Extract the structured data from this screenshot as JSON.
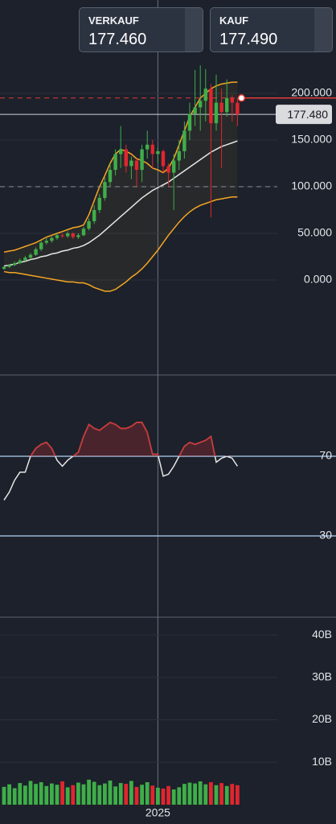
{
  "header": {
    "sell": {
      "label": "VERKAUF",
      "price": "177.460"
    },
    "buy": {
      "label": "KAUF",
      "price": "177.490"
    }
  },
  "chart_data": [
    {
      "type": "candlestick",
      "up_color": "#3fae49",
      "down_color": "#e0262f",
      "open": [
        12,
        14,
        16,
        18,
        21,
        24,
        27,
        33,
        40,
        42,
        45,
        48,
        47,
        50,
        46,
        48,
        55,
        63,
        75,
        88,
        105,
        118,
        135,
        140,
        122,
        128,
        118,
        140,
        145,
        135,
        138,
        122,
        115,
        128,
        138,
        160,
        178,
        185,
        192,
        205,
        168,
        190,
        180,
        195,
        190
      ],
      "high": [
        15,
        17,
        20,
        23,
        26,
        29,
        35,
        42,
        45,
        47,
        50,
        50,
        52,
        51,
        50,
        57,
        66,
        80,
        92,
        110,
        125,
        140,
        165,
        145,
        132,
        130,
        145,
        160,
        150,
        142,
        140,
        125,
        135,
        150,
        170,
        190,
        225,
        230,
        226,
        210,
        220,
        205,
        215,
        198,
        195
      ],
      "low": [
        11,
        13,
        15,
        17,
        20,
        22,
        26,
        31,
        38,
        40,
        43,
        45,
        45,
        44,
        44,
        47,
        53,
        60,
        72,
        85,
        100,
        112,
        120,
        115,
        108,
        100,
        105,
        130,
        120,
        125,
        115,
        100,
        75,
        118,
        130,
        150,
        165,
        160,
        170,
        67,
        160,
        120,
        175,
        170,
        165
      ],
      "close": [
        14,
        16,
        18,
        21,
        24,
        27,
        33,
        40,
        42,
        45,
        48,
        47,
        50,
        46,
        48,
        55,
        63,
        75,
        88,
        105,
        118,
        135,
        140,
        122,
        128,
        118,
        140,
        145,
        135,
        138,
        122,
        115,
        128,
        138,
        160,
        178,
        185,
        192,
        205,
        168,
        190,
        180,
        195,
        190,
        177.48
      ],
      "bollinger": {
        "band_color": "#f5a623",
        "middle_color": "#e6e6e6",
        "upper": [
          30,
          31,
          32,
          34,
          36,
          38,
          40,
          43,
          46,
          48,
          50,
          52,
          54,
          56,
          57,
          59,
          70,
          85,
          100,
          112,
          125,
          135,
          140,
          138,
          135,
          130,
          128,
          125,
          120,
          118,
          115,
          120,
          130,
          145,
          160,
          175,
          185,
          195,
          200,
          205,
          208,
          210,
          211,
          212,
          212
        ],
        "middle": [
          15,
          16,
          17,
          19,
          20,
          22,
          23,
          25,
          26,
          28,
          29,
          31,
          32,
          34,
          35,
          37,
          40,
          44,
          48,
          53,
          58,
          63,
          68,
          73,
          78,
          83,
          88,
          92,
          96,
          99,
          102,
          105,
          109,
          113,
          117,
          121,
          125,
          129,
          133,
          137,
          140,
          143,
          145,
          147,
          149
        ],
        "lower": [
          9,
          8,
          8,
          7,
          6,
          5,
          4,
          3,
          2,
          1,
          0,
          -1,
          -2,
          -2,
          -3,
          -3,
          -5,
          -8,
          -10,
          -12,
          -12,
          -10,
          -6,
          -2,
          3,
          7,
          12,
          18,
          25,
          32,
          40,
          48,
          55,
          62,
          68,
          73,
          77,
          80,
          82,
          84,
          86,
          87,
          88,
          89,
          89
        ]
      },
      "price_line": {
        "value": 177.48,
        "label": "177.480"
      },
      "reference_lines": [
        {
          "value": 195,
          "color": "#e53935",
          "marker": true
        },
        {
          "value": 100,
          "color": "#8a9099",
          "marker": false
        }
      ],
      "ylim": [
        -100,
        300
      ],
      "yticks": [
        {
          "value": 0,
          "label": "0.000"
        },
        {
          "value": 50,
          "label": "50.000"
        },
        {
          "value": 100,
          "label": "100.000"
        },
        {
          "value": 150,
          "label": "150.000"
        },
        {
          "value": 200,
          "label": "200.000"
        }
      ],
      "grid": true
    },
    {
      "type": "line",
      "color": "#e6e6e6",
      "overbought_color": "#d32f2f",
      "level_color": "#b3d4f5",
      "values": [
        48,
        52,
        58,
        62,
        62,
        70,
        74,
        76,
        77,
        74,
        68,
        65,
        68,
        70,
        72,
        80,
        86,
        84,
        83,
        85,
        87,
        86,
        84,
        84,
        85,
        87,
        87,
        82,
        71,
        71,
        60,
        61,
        65,
        70,
        75,
        77,
        76,
        77,
        78,
        80,
        67,
        69,
        70,
        69,
        65
      ],
      "ylim": [
        -10,
        110
      ],
      "yticks": [
        30,
        70
      ]
    },
    {
      "type": "bar",
      "categories": [
        null,
        null,
        null,
        null,
        null,
        null,
        null,
        null,
        null,
        null,
        null,
        null,
        null,
        null,
        null,
        null,
        null,
        null,
        null,
        null,
        null,
        null,
        null,
        null,
        null,
        null,
        null,
        null,
        null,
        "2025",
        null,
        null,
        null,
        null,
        null,
        null,
        null,
        null,
        null,
        null,
        null,
        null,
        null,
        null,
        null
      ],
      "values": [
        4.2,
        4.8,
        3.9,
        5.1,
        4.5,
        5.6,
        4.9,
        5.3,
        4.4,
        5.0,
        4.7,
        5.5,
        4.1,
        4.6,
        5.2,
        4.8,
        5.9,
        5.4,
        4.6,
        5.0,
        5.7,
        4.3,
        5.1,
        4.9,
        5.6,
        4.2,
        4.7,
        5.3,
        4.5,
        4.0,
        3.8,
        4.4,
        3.6,
        4.1,
        4.9,
        5.2,
        5.0,
        5.5,
        4.8,
        5.3,
        4.6,
        5.1,
        4.4,
        4.9,
        4.6
      ],
      "ylim": [
        0,
        44
      ],
      "yticks": [
        {
          "value": 10,
          "label": "10B"
        },
        {
          "value": 20,
          "label": "20B"
        },
        {
          "value": 30,
          "label": "30B"
        },
        {
          "value": 40,
          "label": "40B"
        }
      ],
      "grid": true
    }
  ]
}
